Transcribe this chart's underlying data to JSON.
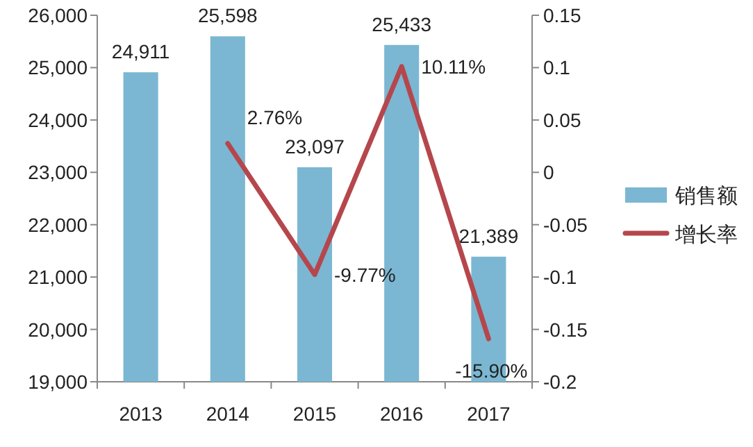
{
  "chart_data": {
    "type": "bar",
    "categories": [
      "2013",
      "2014",
      "2015",
      "2016",
      "2017"
    ],
    "series": [
      {
        "name": "销售额",
        "color": "#7bb7d2",
        "values": [
          24911,
          25598,
          23097,
          25433,
          21389
        ],
        "value_labels": [
          "24,911",
          "25,598",
          "23,097",
          "25,433",
          "21,389"
        ]
      },
      {
        "name": "增长率",
        "type": "line",
        "axis": "y2",
        "color": "#b5474c",
        "values": [
          null,
          0.0276,
          -0.0977,
          0.1011,
          -0.159
        ],
        "value_labels": [
          null,
          "2.76%",
          "-9.77%",
          "10.11%",
          "-15.90%"
        ]
      }
    ],
    "ylim": [
      19000,
      26000
    ],
    "yticks": [
      {
        "value": 19000,
        "label": "19,000"
      },
      {
        "value": 20000,
        "label": "20,000"
      },
      {
        "value": 21000,
        "label": "21,000"
      },
      {
        "value": 22000,
        "label": "22,000"
      },
      {
        "value": 23000,
        "label": "23,000"
      },
      {
        "value": 24000,
        "label": "24,000"
      },
      {
        "value": 25000,
        "label": "25,000"
      },
      {
        "value": 26000,
        "label": "26,000"
      }
    ],
    "y2lim": [
      -0.2,
      0.15
    ],
    "y2ticks": [
      -0.2,
      -0.15,
      -0.1,
      -0.05,
      0,
      0.05,
      0.1,
      0.15
    ],
    "legend": "right",
    "marker": "none",
    "line_style": "solid"
  }
}
